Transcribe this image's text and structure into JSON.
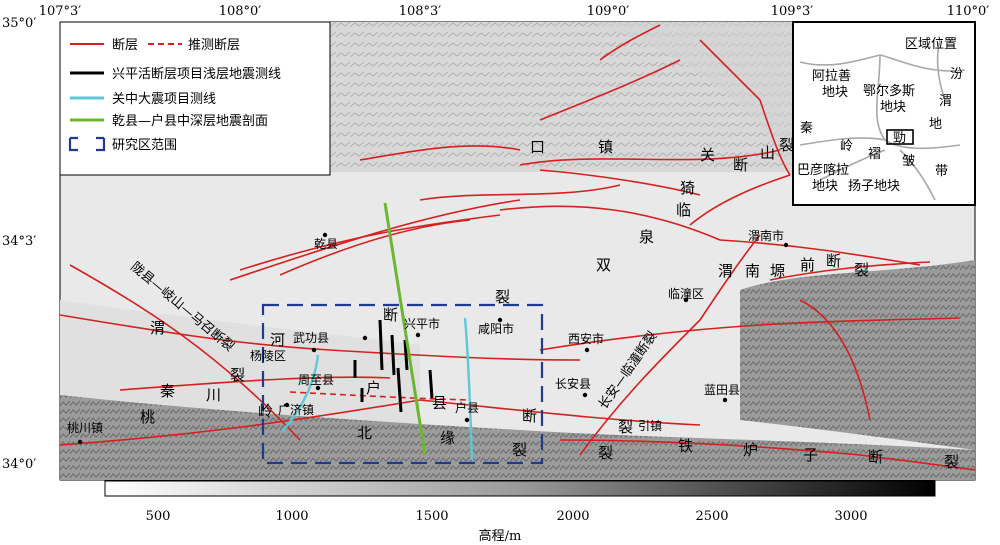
{
  "coords": {
    "top": [
      "107°3′",
      "108°0′",
      "108°3′",
      "109°0′",
      "109°3′",
      "110°0′"
    ],
    "left": [
      "35°0′",
      "34°3′",
      "34°0′"
    ]
  },
  "legend": {
    "fault": "断层",
    "inferred_fault": "推测断层",
    "shallow_seismic": "兴平活断层项目浅层地震测线",
    "guanzhong_line": "关中大震项目测线",
    "deep_profile": "乾县—户县中深层地震剖面",
    "study_area": "研究区范围"
  },
  "colors": {
    "fault": "#d62020",
    "shallow_seismic": "#000000",
    "guanzhong_line": "#5ec8d8",
    "deep_profile": "#6ab830",
    "study_area": "#1f3a8f"
  },
  "places": {
    "qianxian": "乾县",
    "wugong": "武功县",
    "xingping": "兴平市",
    "xianyang": "咸阳市",
    "xian": "西安市",
    "yangling": "杨陵区",
    "zhouzhi": "周至县",
    "guangji": "广济镇",
    "huxian": "户县",
    "changan": "长安县",
    "lantian": "蓝田县",
    "lintong": "临潼区",
    "weinan": "渭南市",
    "taochuan": "桃川镇"
  },
  "fault_chars": {
    "kouzhen": [
      "口",
      "镇",
      "关",
      "山",
      "断",
      "裂"
    ],
    "lintong_gou": [
      "猗",
      "临",
      "泉",
      "双"
    ],
    "weinan_yuan": [
      "渭",
      "南",
      "塬",
      "前",
      "断",
      "裂"
    ],
    "longxian": "陇县—岐山—马召断裂",
    "weihe": [
      "渭",
      "河",
      "断",
      "裂"
    ],
    "weihe2": [
      "裂"
    ],
    "qinling": [
      "秦",
      "岭",
      "北",
      "缘",
      "断",
      "裂"
    ],
    "qinchuan": [
      "桃",
      "川",
      "户",
      "县"
    ],
    "changan_lintong": "长安—临潼断裂",
    "tielu": [
      "裂",
      "引镇",
      "铁",
      "炉",
      "子",
      "断",
      "裂"
    ]
  },
  "inset": {
    "region_title": "区域位置",
    "alashan": [
      "阿拉善",
      "地块"
    ],
    "ordos": [
      "鄂尔多斯",
      "地块"
    ],
    "fen": [
      "汾",
      "渭",
      "地"
    ],
    "qin": "秦",
    "ling": "岭",
    "zhe": "褶",
    "sou": "皱",
    "dai": "带",
    "study_marker": "勁",
    "bayan": [
      "巴彦喀拉",
      "地块"
    ],
    "yangzi": "扬子地块"
  },
  "scale": {
    "ticks": [
      "500",
      "1000",
      "1500",
      "2000",
      "2500",
      "3000"
    ],
    "label": "高程/m"
  }
}
